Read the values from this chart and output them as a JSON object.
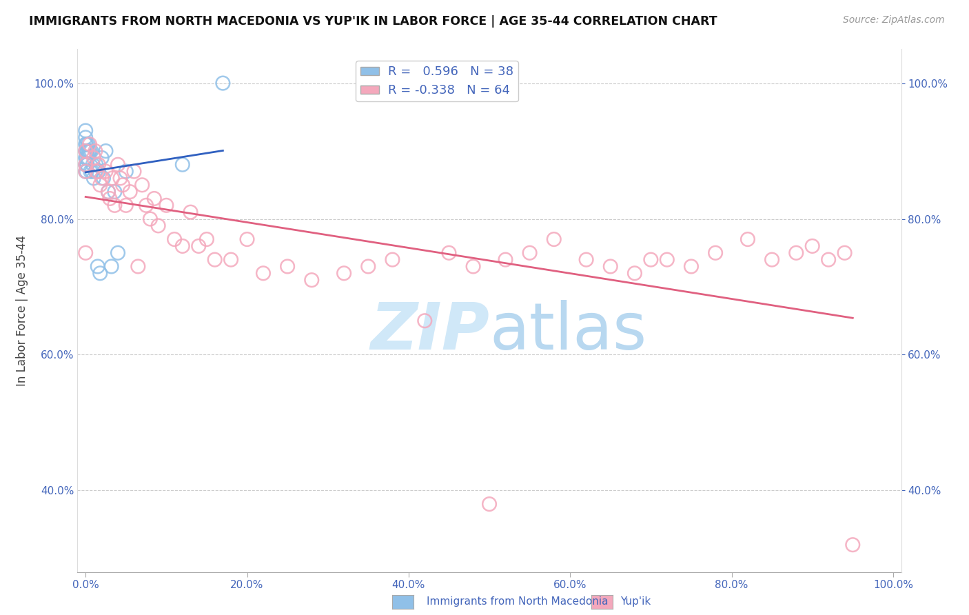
{
  "title": "IMMIGRANTS FROM NORTH MACEDONIA VS YUP'IK IN LABOR FORCE | AGE 35-44 CORRELATION CHART",
  "source": "Source: ZipAtlas.com",
  "ylabel": "In Labor Force | Age 35-44",
  "r_blue": 0.596,
  "n_blue": 38,
  "r_pink": -0.338,
  "n_pink": 64,
  "blue_scatter_color": "#90C0E8",
  "pink_scatter_color": "#F4A8BC",
  "trend_blue_color": "#3060C0",
  "trend_pink_color": "#E06080",
  "watermark_color": "#D0E8F8",
  "tick_color": "#4466BB",
  "title_color": "#111111",
  "source_color": "#999999",
  "grid_color": "#CCCCCC",
  "blue_points_x": [
    0.0,
    0.0,
    0.0,
    0.0,
    0.0,
    0.0,
    0.0,
    0.001,
    0.001,
    0.001,
    0.001,
    0.001,
    0.002,
    0.002,
    0.003,
    0.003,
    0.004,
    0.005,
    0.006,
    0.007,
    0.008,
    0.009,
    0.01,
    0.012,
    0.013,
    0.015,
    0.016,
    0.018,
    0.02,
    0.022,
    0.025,
    0.028,
    0.032,
    0.036,
    0.04,
    0.05,
    0.12,
    0.17
  ],
  "blue_points_y": [
    0.88,
    0.92,
    0.91,
    0.9,
    0.89,
    0.93,
    0.87,
    0.9,
    0.89,
    0.88,
    0.87,
    0.91,
    0.9,
    0.88,
    0.91,
    0.89,
    0.9,
    0.9,
    0.87,
    0.9,
    0.87,
    0.88,
    0.86,
    0.87,
    0.88,
    0.73,
    0.87,
    0.72,
    0.89,
    0.86,
    0.9,
    0.84,
    0.73,
    0.84,
    0.75,
    0.87,
    0.88,
    1.0
  ],
  "pink_points_x": [
    0.0,
    0.0,
    0.0,
    0.0,
    0.005,
    0.01,
    0.012,
    0.014,
    0.016,
    0.018,
    0.02,
    0.025,
    0.028,
    0.03,
    0.033,
    0.036,
    0.04,
    0.043,
    0.046,
    0.05,
    0.055,
    0.06,
    0.065,
    0.07,
    0.075,
    0.08,
    0.085,
    0.09,
    0.1,
    0.11,
    0.12,
    0.13,
    0.14,
    0.15,
    0.16,
    0.18,
    0.2,
    0.22,
    0.25,
    0.28,
    0.32,
    0.35,
    0.38,
    0.42,
    0.45,
    0.48,
    0.5,
    0.52,
    0.55,
    0.58,
    0.62,
    0.65,
    0.68,
    0.7,
    0.72,
    0.75,
    0.78,
    0.82,
    0.85,
    0.88,
    0.9,
    0.92,
    0.94,
    0.95
  ],
  "pink_points_y": [
    0.9,
    0.88,
    0.87,
    0.75,
    0.91,
    0.89,
    0.9,
    0.87,
    0.88,
    0.85,
    0.86,
    0.87,
    0.84,
    0.83,
    0.86,
    0.82,
    0.88,
    0.86,
    0.85,
    0.82,
    0.84,
    0.87,
    0.73,
    0.85,
    0.82,
    0.8,
    0.83,
    0.79,
    0.82,
    0.77,
    0.76,
    0.81,
    0.76,
    0.77,
    0.74,
    0.74,
    0.77,
    0.72,
    0.73,
    0.71,
    0.72,
    0.73,
    0.74,
    0.65,
    0.75,
    0.73,
    0.38,
    0.74,
    0.75,
    0.77,
    0.74,
    0.73,
    0.72,
    0.74,
    0.74,
    0.73,
    0.75,
    0.77,
    0.74,
    0.75,
    0.76,
    0.74,
    0.75,
    0.32
  ]
}
